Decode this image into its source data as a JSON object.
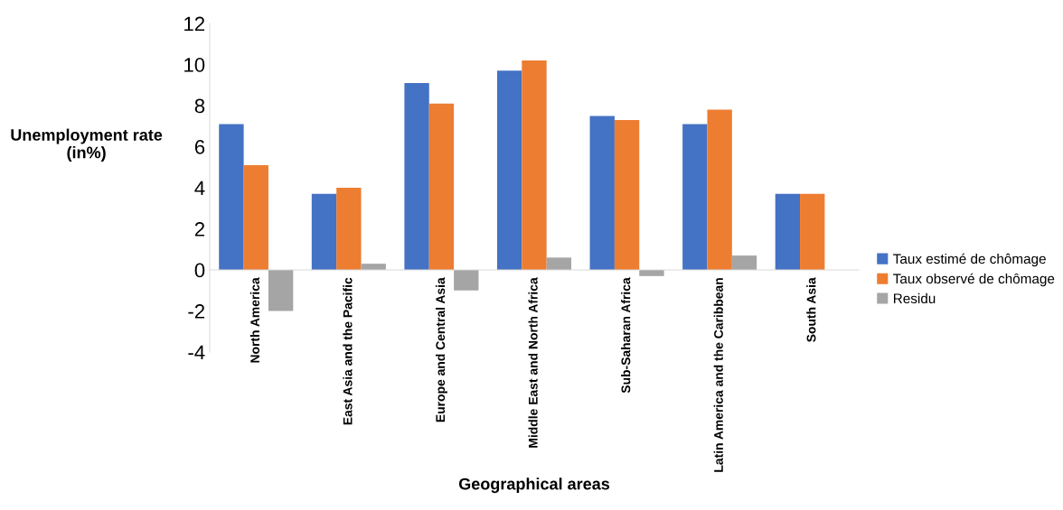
{
  "chart_data": {
    "type": "bar",
    "xlabel": "Geographical areas",
    "ylabel": "Unemployment rate (in%)",
    "categories": [
      "North America",
      "East Asia and the Pacific",
      "Europe and Central Asia",
      "Middle East and North Africa",
      "Sub-Saharan Africa",
      "Latin America and the Caribbean",
      "South Asia"
    ],
    "series": [
      {
        "name": "Taux estimé de chômage",
        "color": "#4472c4",
        "values": [
          7.1,
          3.7,
          9.1,
          9.7,
          7.5,
          7.1,
          3.7
        ]
      },
      {
        "name": "Taux observé de chômage",
        "color": "#ed7d31",
        "values": [
          5.1,
          4.0,
          8.1,
          10.2,
          7.3,
          7.8,
          3.7
        ]
      },
      {
        "name": "Residu",
        "color": "#a5a5a5",
        "values": [
          -2.0,
          0.3,
          -1.0,
          0.6,
          -0.3,
          0.7,
          0.0
        ]
      }
    ],
    "ylim": [
      -4,
      12
    ],
    "yticks": [
      -4,
      -2,
      0,
      2,
      4,
      6,
      8,
      10,
      12
    ],
    "grid": false,
    "legend": "right"
  }
}
